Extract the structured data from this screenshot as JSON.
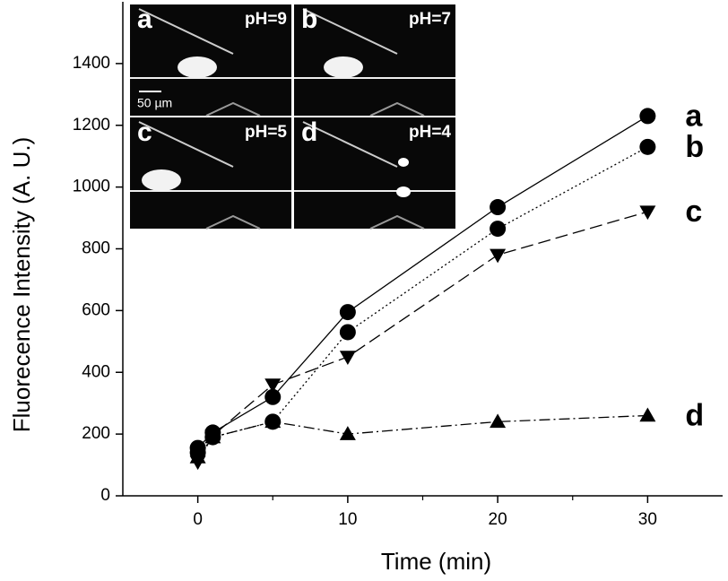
{
  "chart_data": {
    "type": "line",
    "x_label": "Time (min)",
    "y_label": "Fluorecence Intensity (A. U.)",
    "x": [
      0,
      1,
      5,
      10,
      20,
      30
    ],
    "series": [
      {
        "name": "a",
        "color": "#000000",
        "marker": "circle",
        "dash": "solid",
        "values": [
          155,
          205,
          320,
          595,
          935,
          1230
        ]
      },
      {
        "name": "b",
        "color": "#000000",
        "marker": "circle",
        "dash": "dotted",
        "values": [
          140,
          190,
          240,
          530,
          865,
          1130
        ]
      },
      {
        "name": "c",
        "color": "#000000",
        "marker": "triangle-down",
        "dash": "dashed",
        "values": [
          110,
          195,
          360,
          450,
          780,
          920
        ]
      },
      {
        "name": "d",
        "color": "#000000",
        "marker": "triangle-up",
        "dash": "dashdot",
        "values": [
          125,
          190,
          240,
          200,
          240,
          260
        ]
      }
    ],
    "xlim": [
      -5,
      35
    ],
    "xticks": [
      0,
      10,
      20,
      30
    ],
    "x_minor_ticks": [
      5,
      15,
      25
    ],
    "ylim": [
      0,
      1600
    ],
    "yticks": [
      0,
      200,
      400,
      600,
      800,
      1000,
      1200,
      1400
    ],
    "insets": [
      {
        "letter": "a",
        "text": "pH=9"
      },
      {
        "letter": "b",
        "text": "pH=7"
      },
      {
        "letter": "c",
        "text": "pH=5"
      },
      {
        "letter": "d",
        "text": "pH=4"
      }
    ],
    "scale_bar": "50 µm"
  }
}
